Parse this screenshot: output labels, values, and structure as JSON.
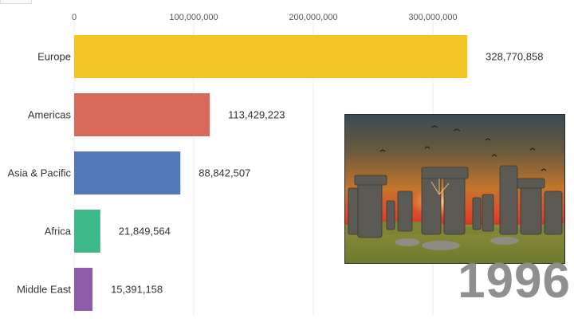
{
  "chart_data": {
    "type": "bar",
    "orientation": "horizontal",
    "categories": [
      "Europe",
      "Americas",
      "Asia & Pacific",
      "Africa",
      "Middle East"
    ],
    "values": [
      328770858,
      113429223,
      88842507,
      21849564,
      15391158
    ],
    "value_labels": [
      "328,770,858",
      "113,429,223",
      "88,842,507",
      "21,849,564",
      "15,391,158"
    ],
    "colors": [
      "#F2C524",
      "#D9695B",
      "#5278B8",
      "#3DB889",
      "#8E5BA8"
    ],
    "x_ticks": [
      {
        "value": 0,
        "label": "0"
      },
      {
        "value": 100000000,
        "label": "100,000,000"
      },
      {
        "value": 200000000,
        "label": "200,000,000"
      },
      {
        "value": 300000000,
        "label": "300,000,000"
      }
    ],
    "xlim": [
      0,
      400000000
    ],
    "grid": true,
    "axis_position": "top",
    "title": "",
    "xlabel": "",
    "ylabel": ""
  },
  "year": "1996",
  "image": {
    "subject": "stonehenge-icon"
  }
}
